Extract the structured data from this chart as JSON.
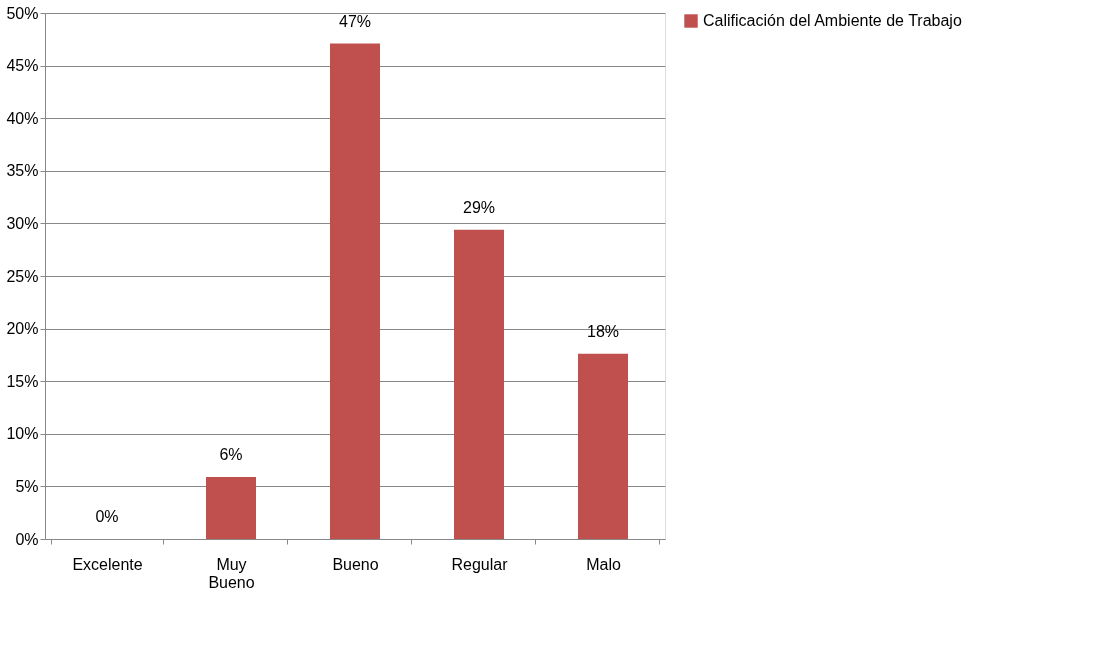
{
  "chart_data": {
    "type": "bar",
    "categories": [
      "Excelente",
      "Muy Bueno",
      "Bueno",
      "Regular",
      "Malo"
    ],
    "series": [
      {
        "name": "Calificación del Ambiente de Trabajo",
        "color": "#c0504d",
        "values": [
          0,
          5.9,
          47.1,
          29.4,
          17.6
        ]
      }
    ],
    "value_labels": [
      "0%",
      "6%",
      "47%",
      "29%",
      "18%"
    ],
    "ylim": [
      0,
      50
    ],
    "yticks": [
      {
        "value": 0,
        "label": "0%"
      },
      {
        "value": 5,
        "label": "5%"
      },
      {
        "value": 10,
        "label": "10%"
      },
      {
        "value": 15,
        "label": "15%"
      },
      {
        "value": 20,
        "label": "20%"
      },
      {
        "value": 25,
        "label": "25%"
      },
      {
        "value": 30,
        "label": "30%"
      },
      {
        "value": 35,
        "label": "35%"
      },
      {
        "value": 40,
        "label": "40%"
      },
      {
        "value": 45,
        "label": "45%"
      },
      {
        "value": 50,
        "label": "50%"
      }
    ],
    "grid": "y",
    "legend": "right"
  }
}
